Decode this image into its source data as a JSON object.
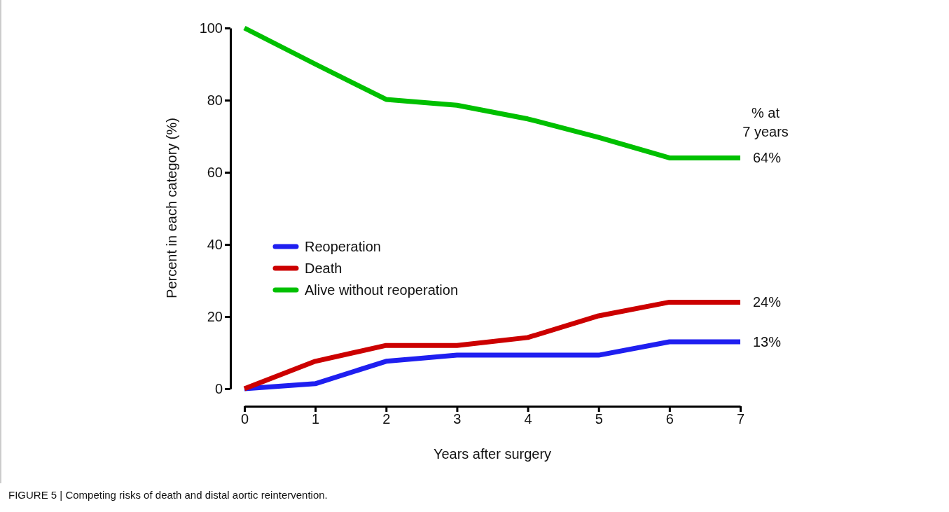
{
  "chart_data": {
    "type": "line",
    "xlabel": "Years after surgery",
    "ylabel": "Percent in each category (%)",
    "x": [
      0,
      1,
      2,
      3,
      4,
      5,
      6,
      7
    ],
    "series": [
      {
        "name": "Reoperation",
        "color": "#1f1ff0",
        "values": [
          0,
          1.4,
          7.6,
          9.3,
          9.3,
          9.3,
          13,
          13
        ],
        "value_labels": [
          null,
          null,
          null,
          null,
          null,
          null,
          null,
          "13%"
        ]
      },
      {
        "name": "Death",
        "color": "#cc0000",
        "values": [
          0,
          7.6,
          12,
          12,
          14.2,
          20.2,
          24,
          24
        ],
        "value_labels": [
          null,
          null,
          null,
          null,
          null,
          null,
          null,
          "24%"
        ]
      },
      {
        "name": "Alive without reoperation",
        "color": "#00c000",
        "values": [
          100,
          90,
          80.2,
          78.6,
          74.8,
          69.7,
          64,
          64
        ],
        "value_labels": [
          null,
          null,
          null,
          null,
          null,
          null,
          null,
          "64%"
        ]
      }
    ],
    "xlim": [
      0,
      7
    ],
    "xticks": [
      0,
      1,
      2,
      3,
      4,
      5,
      6,
      7
    ],
    "ylim": [
      0,
      100
    ],
    "yticks": [
      0,
      20,
      40,
      60,
      80,
      100
    ],
    "grid": false,
    "legend": "left",
    "marker": "none",
    "line_style": "solid",
    "annotations": [
      "% at\n7 years",
      "FIGURE 5 | Competing risks of death and distal aortic reintervention."
    ]
  }
}
